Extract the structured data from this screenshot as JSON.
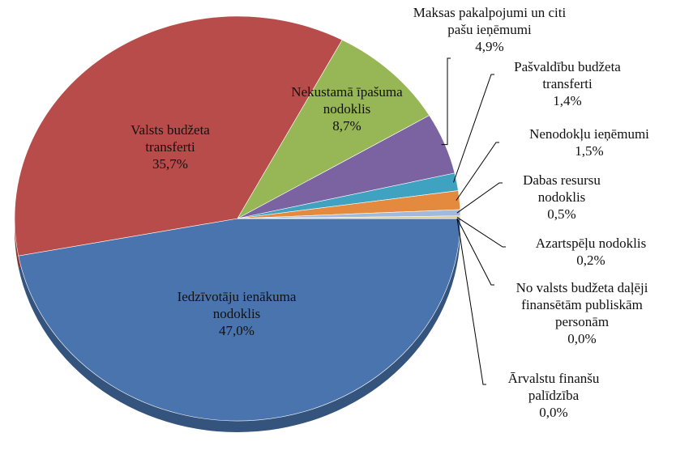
{
  "chart_data": {
    "type": "pie",
    "categories": [
      "Iedzīvotāju ienākuma nodoklis",
      "Valsts budžeta transferti",
      "Nekustamā īpašuma nodoklis",
      "Maksas pakalpojumi un citi pašu ieņēmumi",
      "Pašvaldību budžeta transferti",
      "Nenodokļu ieņēmumi",
      "Dabas resursu nodoklis",
      "Azartspēļu nodoklis",
      "No valsts budžeta daļēji finansētām publiskām personām",
      "Ārvalstu finanšu palīdzība"
    ],
    "values": [
      47.0,
      35.7,
      8.7,
      4.9,
      1.4,
      1.5,
      0.5,
      0.2,
      0.0,
      0.0
    ],
    "value_labels": [
      "47,0%",
      "35,7%",
      "8,7%",
      "4,9%",
      "1,4%",
      "1,5%",
      "0,5%",
      "0,2%",
      "0,0%",
      "0,0%"
    ],
    "colors": [
      "#4a74ad",
      "#b84c4a",
      "#97b655",
      "#7b63a1",
      "#3fa2c0",
      "#e48a3e",
      "#a2b9da",
      "#d8c98e",
      "#c9a3a2",
      "#b4c98d"
    ]
  }
}
